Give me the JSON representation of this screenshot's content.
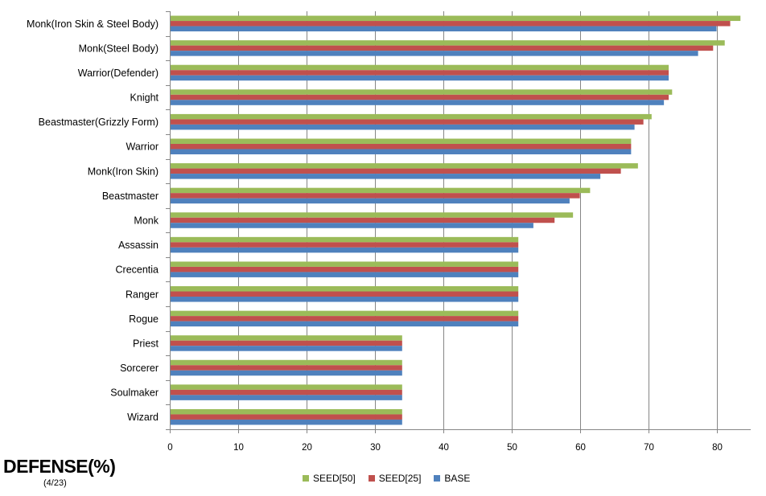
{
  "chart_data": {
    "type": "bar",
    "orientation": "horizontal",
    "title": "DEFENSE(%)",
    "subtitle": "(4/23)",
    "categories": [
      "Monk(Iron Skin & Steel Body)",
      "Monk(Steel Body)",
      "Warrior(Defender)",
      "Knight",
      "Beastmaster(Grizzly Form)",
      "Warrior",
      "Monk(Iron Skin)",
      "Beastmaster",
      "Monk",
      "Assassin",
      "Crecentia",
      "Ranger",
      "Rogue",
      "Priest",
      "Sorcerer",
      "Soulmaker",
      "Wizard"
    ],
    "series": [
      {
        "name": "SEED[50]",
        "color": "#9bbb59",
        "values": [
          83.5,
          81.2,
          73.0,
          73.5,
          70.5,
          67.5,
          68.5,
          61.5,
          59.0,
          51.0,
          51.0,
          51.0,
          51.0,
          34.0,
          34.0,
          34.0,
          34.0
        ]
      },
      {
        "name": "SEED[25]",
        "color": "#c0504d",
        "values": [
          82.0,
          79.5,
          73.0,
          73.0,
          69.3,
          67.5,
          66.0,
          60.0,
          56.3,
          51.0,
          51.0,
          51.0,
          51.0,
          34.0,
          34.0,
          34.0,
          34.0
        ]
      },
      {
        "name": "BASE",
        "color": "#4f81bd",
        "values": [
          80.0,
          77.3,
          73.0,
          72.3,
          68.0,
          67.5,
          63.0,
          58.5,
          53.2,
          51.0,
          51.0,
          51.0,
          51.0,
          34.0,
          34.0,
          34.0,
          34.0
        ]
      }
    ],
    "xlim": [
      0,
      85
    ],
    "xticks": [
      0,
      10,
      20,
      30,
      40,
      50,
      60,
      70,
      80
    ],
    "xtick_labels": [
      "0",
      "10",
      "20",
      "30",
      "40",
      "50",
      "60",
      "70",
      "80"
    ],
    "xlabel": "",
    "ylabel": "",
    "grid": "vertical",
    "legend_position": "bottom"
  },
  "legend": [
    {
      "label": "SEED[50]",
      "color": "#9bbb59"
    },
    {
      "label": "SEED[25]",
      "color": "#c0504d"
    },
    {
      "label": "BASE",
      "color": "#4f81bd"
    }
  ]
}
